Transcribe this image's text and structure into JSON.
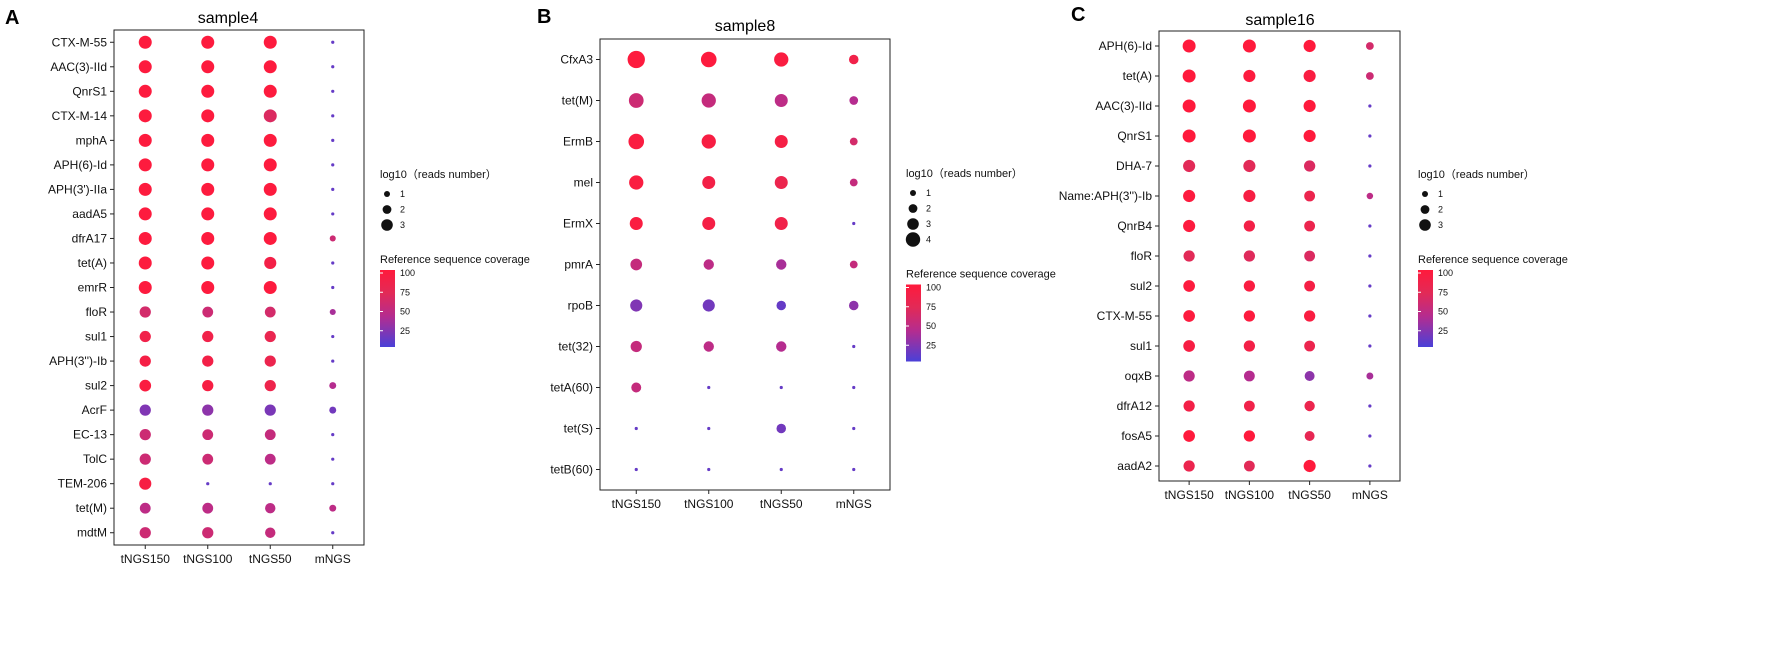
{
  "chart_data": [
    {
      "type": "scatter",
      "panel_label": "A",
      "title": "sample4",
      "xlabel": "",
      "ylabel": "",
      "categories": [
        "tNGS150",
        "tNGS100",
        "tNGS50",
        "mNGS"
      ],
      "genes": [
        "CTX-M-55",
        "AAC(3)-IId",
        "QnrS1",
        "CTX-M-14",
        "mphA",
        "APH(6)-Id",
        "APH(3')-IIa",
        "aadA5",
        "dfrA17",
        "tet(A)",
        "emrR",
        "floR",
        "sul1",
        "APH(3'')-Ib",
        "sul2",
        "AcrF",
        "EC-13",
        "TolC",
        "TEM-206",
        "tet(M)",
        "mdtM"
      ],
      "log_reads": [
        [
          3.0,
          3.0,
          3.0,
          1.0
        ],
        [
          3.0,
          3.0,
          3.0,
          1.0
        ],
        [
          3.0,
          3.0,
          3.0,
          1.0
        ],
        [
          3.0,
          3.0,
          3.0,
          1.0
        ],
        [
          3.0,
          3.0,
          3.0,
          1.0
        ],
        [
          3.0,
          3.0,
          3.0,
          1.0
        ],
        [
          3.0,
          3.0,
          3.0,
          1.0
        ],
        [
          3.0,
          3.0,
          3.0,
          1.0
        ],
        [
          3.0,
          3.0,
          3.0,
          1.4
        ],
        [
          3.0,
          3.0,
          2.8,
          1.0
        ],
        [
          3.0,
          3.0,
          3.0,
          1.0
        ],
        [
          2.6,
          2.5,
          2.5,
          1.4
        ],
        [
          2.6,
          2.6,
          2.6,
          1.0
        ],
        [
          2.6,
          2.6,
          2.6,
          1.0
        ],
        [
          2.7,
          2.6,
          2.6,
          1.6
        ],
        [
          2.6,
          2.6,
          2.6,
          1.6
        ],
        [
          2.6,
          2.5,
          2.5,
          1.0
        ],
        [
          2.6,
          2.5,
          2.5,
          1.0
        ],
        [
          2.8,
          1.0,
          1.0,
          1.0
        ],
        [
          2.5,
          2.5,
          2.4,
          1.6
        ],
        [
          2.6,
          2.6,
          2.4,
          1.0
        ]
      ],
      "coverage": [
        [
          98,
          98,
          98,
          10
        ],
        [
          98,
          98,
          98,
          10
        ],
        [
          98,
          98,
          98,
          10
        ],
        [
          98,
          98,
          65,
          10
        ],
        [
          98,
          98,
          98,
          10
        ],
        [
          98,
          98,
          98,
          10
        ],
        [
          98,
          98,
          98,
          10
        ],
        [
          98,
          98,
          98,
          10
        ],
        [
          98,
          98,
          98,
          55
        ],
        [
          98,
          98,
          88,
          10
        ],
        [
          98,
          98,
          98,
          10
        ],
        [
          60,
          55,
          60,
          35
        ],
        [
          85,
          85,
          78,
          10
        ],
        [
          90,
          88,
          80,
          10
        ],
        [
          95,
          92,
          82,
          40
        ],
        [
          20,
          25,
          18,
          15
        ],
        [
          55,
          55,
          50,
          10
        ],
        [
          55,
          55,
          45,
          10
        ],
        [
          92,
          10,
          10,
          10
        ],
        [
          45,
          45,
          45,
          45
        ],
        [
          55,
          55,
          50,
          10
        ]
      ],
      "size_legend": {
        "title": "log10（reads number）",
        "values": [
          1,
          2,
          3
        ]
      },
      "color_legend": {
        "title": "Reference sequence coverage",
        "ticks": [
          100,
          75,
          50,
          25
        ]
      }
    },
    {
      "type": "scatter",
      "panel_label": "B",
      "title": "sample8",
      "xlabel": "",
      "ylabel": "",
      "categories": [
        "tNGS150",
        "tNGS100",
        "tNGS50",
        "mNGS"
      ],
      "genes": [
        "CfxA3",
        "tet(M)",
        "ErmB",
        "mel",
        "ErmX",
        "pmrA",
        "rpoB",
        "tet(32)",
        "tetA(60)",
        "tet(S)",
        "tetB(60)"
      ],
      "log_reads": [
        [
          4.0,
          3.6,
          3.3,
          2.2
        ],
        [
          3.4,
          3.3,
          3.0,
          2.0
        ],
        [
          3.6,
          3.3,
          3.0,
          1.8
        ],
        [
          3.3,
          3.0,
          3.0,
          1.8
        ],
        [
          3.0,
          3.0,
          3.0,
          1.0
        ],
        [
          2.7,
          2.4,
          2.4,
          1.8
        ],
        [
          2.8,
          2.8,
          2.2,
          2.2
        ],
        [
          2.6,
          2.4,
          2.4,
          1.0
        ],
        [
          2.3,
          1.0,
          1.0,
          1.0
        ],
        [
          1.0,
          1.0,
          2.2,
          1.0
        ],
        [
          1.0,
          1.0,
          1.0,
          1.0
        ]
      ],
      "coverage": [
        [
          98,
          98,
          95,
          85
        ],
        [
          55,
          50,
          45,
          40
        ],
        [
          95,
          92,
          90,
          60
        ],
        [
          95,
          88,
          80,
          50
        ],
        [
          95,
          90,
          85,
          10
        ],
        [
          50,
          45,
          35,
          50
        ],
        [
          20,
          15,
          10,
          25
        ],
        [
          50,
          45,
          40,
          10
        ],
        [
          50,
          10,
          10,
          10
        ],
        [
          10,
          10,
          15,
          10
        ],
        [
          10,
          10,
          10,
          10
        ]
      ],
      "size_legend": {
        "title": "log10（reads number）",
        "values": [
          1,
          2,
          3,
          4
        ]
      },
      "color_legend": {
        "title": "Reference sequence coverage",
        "ticks": [
          100,
          75,
          50,
          25
        ]
      }
    },
    {
      "type": "scatter",
      "panel_label": "C",
      "title": "sample16",
      "xlabel": "",
      "ylabel": "",
      "categories": [
        "tNGS150",
        "tNGS100",
        "tNGS50",
        "mNGS"
      ],
      "genes": [
        "APH(6)-Id",
        "tet(A)",
        "AAC(3)-IId",
        "QnrS1",
        "DHA-7",
        "Name:APH(3'')-Ib",
        "QnrB4",
        "floR",
        "sul2",
        "CTX-M-55",
        "sul1",
        "oqxB",
        "dfrA12",
        "fosA5",
        "aadA2"
      ],
      "log_reads": [
        [
          3.0,
          3.0,
          2.8,
          1.8
        ],
        [
          3.0,
          2.8,
          2.8,
          1.8
        ],
        [
          3.0,
          3.0,
          2.8,
          1.0
        ],
        [
          3.0,
          3.0,
          2.8,
          1.0
        ],
        [
          2.8,
          2.8,
          2.6,
          1.0
        ],
        [
          2.8,
          2.8,
          2.5,
          1.5
        ],
        [
          2.8,
          2.6,
          2.5,
          1.0
        ],
        [
          2.6,
          2.6,
          2.5,
          1.0
        ],
        [
          2.7,
          2.6,
          2.5,
          1.0
        ],
        [
          2.7,
          2.6,
          2.6,
          1.0
        ],
        [
          2.7,
          2.6,
          2.5,
          1.0
        ],
        [
          2.6,
          2.5,
          2.3,
          1.6
        ],
        [
          2.6,
          2.5,
          2.4,
          1.0
        ],
        [
          2.7,
          2.6,
          2.3,
          1.0
        ],
        [
          2.6,
          2.5,
          2.8,
          1.0
        ]
      ],
      "coverage": [
        [
          100,
          100,
          100,
          60
        ],
        [
          100,
          98,
          95,
          55
        ],
        [
          100,
          100,
          100,
          10
        ],
        [
          100,
          100,
          100,
          10
        ],
        [
          70,
          70,
          65,
          10
        ],
        [
          98,
          92,
          80,
          45
        ],
        [
          98,
          88,
          80,
          10
        ],
        [
          70,
          68,
          65,
          10
        ],
        [
          98,
          95,
          90,
          10
        ],
        [
          98,
          98,
          95,
          10
        ],
        [
          92,
          88,
          80,
          10
        ],
        [
          45,
          40,
          25,
          35
        ],
        [
          88,
          85,
          80,
          10
        ],
        [
          100,
          100,
          75,
          10
        ],
        [
          80,
          70,
          100,
          10
        ]
      ],
      "size_legend": {
        "title": "log10（reads number）",
        "values": [
          1,
          2,
          3
        ]
      },
      "color_legend": {
        "title": "Reference sequence coverage",
        "ticks": [
          100,
          75,
          50,
          25
        ]
      }
    }
  ]
}
